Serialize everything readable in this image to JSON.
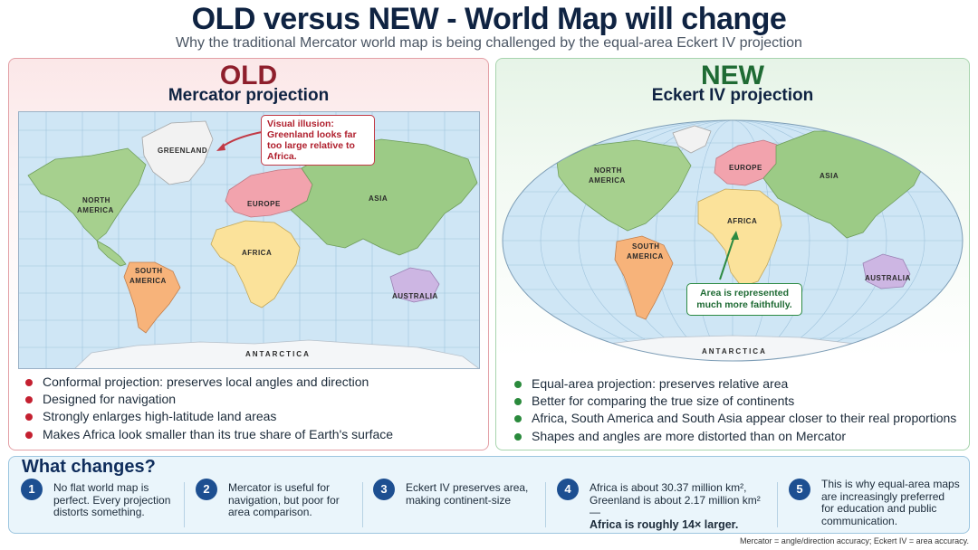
{
  "header": {
    "title": "OLD versus NEW - World Map will change",
    "subtitle": "Why the traditional Mercator world map is being challenged by the equal-area Eckert IV projection"
  },
  "old_panel": {
    "tag": "OLD",
    "projection": "Mercator projection",
    "callout": "Visual illusion: Greenland looks far too large relative to Africa.",
    "labels": {
      "greenland": "GREENLAND",
      "north_america_1": "NORTH",
      "north_america_2": "AMERICA",
      "europe": "EUROPE",
      "asia": "ASIA",
      "africa": "AFRICA",
      "south_america_1": "SOUTH",
      "south_america_2": "AMERICA",
      "australia": "AUSTRALIA",
      "antarctica": "ANTARCTICA"
    },
    "bullets": [
      "Conformal projection: preserves local angles and direction",
      "Designed for navigation",
      "Strongly enlarges high-latitude land areas",
      "Makes Africa look smaller than its true share of Earth's surface"
    ]
  },
  "new_panel": {
    "tag": "NEW",
    "projection": "Eckert IV projection",
    "callout": "Area is represented much more faithfully.",
    "labels": {
      "north_america_1": "NORTH",
      "north_america_2": "AMERICA",
      "europe": "EUROPE",
      "asia": "ASIA",
      "africa": "AFRICA",
      "south_america_1": "SOUTH",
      "south_america_2": "AMERICA",
      "australia": "AUSTRALIA",
      "antarctica": "ANTARCTICA"
    },
    "bullets": [
      "Equal-area projection: preserves relative area",
      "Better for comparing the true size of continents",
      "Africa, South America and South Asia appear closer to their real proportions",
      "Shapes and angles are more distorted than on Mercator"
    ]
  },
  "changes": {
    "title": "What changes?",
    "steps": [
      {
        "num": "1",
        "lines": [
          "No flat world map is",
          "perfect. Every projection",
          "distorts something."
        ]
      },
      {
        "num": "2",
        "lines": [
          "Mercator is useful for",
          "navigation, but poor for",
          "area comparison."
        ]
      },
      {
        "num": "3",
        "lines": [
          "Eckert IV preserves area,",
          "making continent-size"
        ]
      },
      {
        "num": "4",
        "lines": [
          "Africa is about 30.37 million km²,",
          "Greenland is about 2.17 million km² —"
        ],
        "bold": "Africa is roughly 14× larger."
      },
      {
        "num": "5",
        "lines": [
          "This is why equal-area maps",
          "are increasingly preferred",
          "for education and public",
          "communication."
        ]
      }
    ],
    "footnote": "Mercator = angle/direction accuracy; Eckert IV = area accuracy."
  },
  "colors": {
    "old_accent": "#8e1f2c",
    "new_accent": "#1f6b34",
    "ocean": "#cfe6f5",
    "north_america": "#a6d08e",
    "europe": "#f2a3ad",
    "asia": "#9ccb86",
    "africa": "#fbe29a",
    "south_america": "#f7b37a",
    "australia": "#cdb6e3",
    "greenland": "#f2f2f2",
    "antarctica": "#f4f6f8"
  }
}
